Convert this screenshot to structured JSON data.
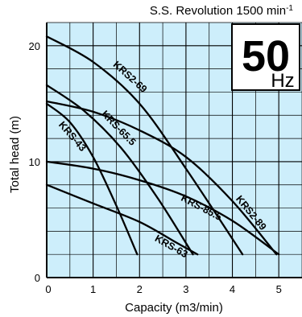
{
  "header": {
    "speed_label": "S.S. Revolution 1500 min",
    "speed_unit_exponent": "-1"
  },
  "badge": {
    "frequency_value": "50",
    "frequency_unit": "Hz"
  },
  "colors": {
    "plot_background": "#cdeefb",
    "grid": "#000000",
    "curve": "#000000",
    "badge_background": "#ffffff"
  },
  "chart_data": {
    "type": "line",
    "title": "",
    "xlabel": "Capacity (m3/min)",
    "ylabel": "Total head (m)",
    "xlim": [
      0,
      5.5
    ],
    "ylim": [
      0,
      22
    ],
    "x_ticks": [
      0,
      1,
      2,
      3,
      4,
      5
    ],
    "y_ticks": [
      0,
      10,
      20
    ],
    "grid": true,
    "series": [
      {
        "name": "KRS-43",
        "x": [
          0,
          0.5,
          1.0,
          1.5,
          1.95
        ],
        "y": [
          15.0,
          13.4,
          10.4,
          6.2,
          2.0
        ]
      },
      {
        "name": "KRS-63",
        "x": [
          0,
          1.0,
          2.0,
          2.8,
          3.25
        ],
        "y": [
          8.0,
          6.4,
          4.8,
          3.0,
          2.0
        ]
      },
      {
        "name": "KRS-65.5",
        "x": [
          0,
          0.8,
          1.6,
          2.4,
          3.15
        ],
        "y": [
          16.6,
          14.4,
          11.2,
          6.8,
          2.0
        ]
      },
      {
        "name": "KRS-85.5",
        "x": [
          0,
          1.0,
          2.0,
          3.0,
          4.0,
          5.0
        ],
        "y": [
          10.0,
          9.4,
          8.4,
          7.0,
          4.9,
          2.0
        ]
      },
      {
        "name": "KRS2-69",
        "x": [
          0,
          1.0,
          2.0,
          3.0,
          4.22
        ],
        "y": [
          20.8,
          18.6,
          15.0,
          9.4,
          2.0
        ]
      },
      {
        "name": "KRS2-89",
        "x": [
          0,
          1.0,
          2.0,
          3.0,
          4.0,
          4.95
        ],
        "y": [
          15.2,
          14.3,
          12.7,
          10.4,
          6.6,
          2.0
        ]
      }
    ],
    "curve_labels": [
      {
        "text": "KRS-43",
        "x": 0.5,
        "y": 12.0
      },
      {
        "text": "KRS-63",
        "x": 2.65,
        "y": 2.45
      },
      {
        "text": "KRS-65.5",
        "x": 1.5,
        "y": 12.7
      },
      {
        "text": "KRS-85.5",
        "x": 3.3,
        "y": 5.8
      },
      {
        "text": "KRS2-69",
        "x": 1.75,
        "y": 17.1
      },
      {
        "text": "KRS2-89",
        "x": 4.35,
        "y": 5.4
      }
    ]
  }
}
